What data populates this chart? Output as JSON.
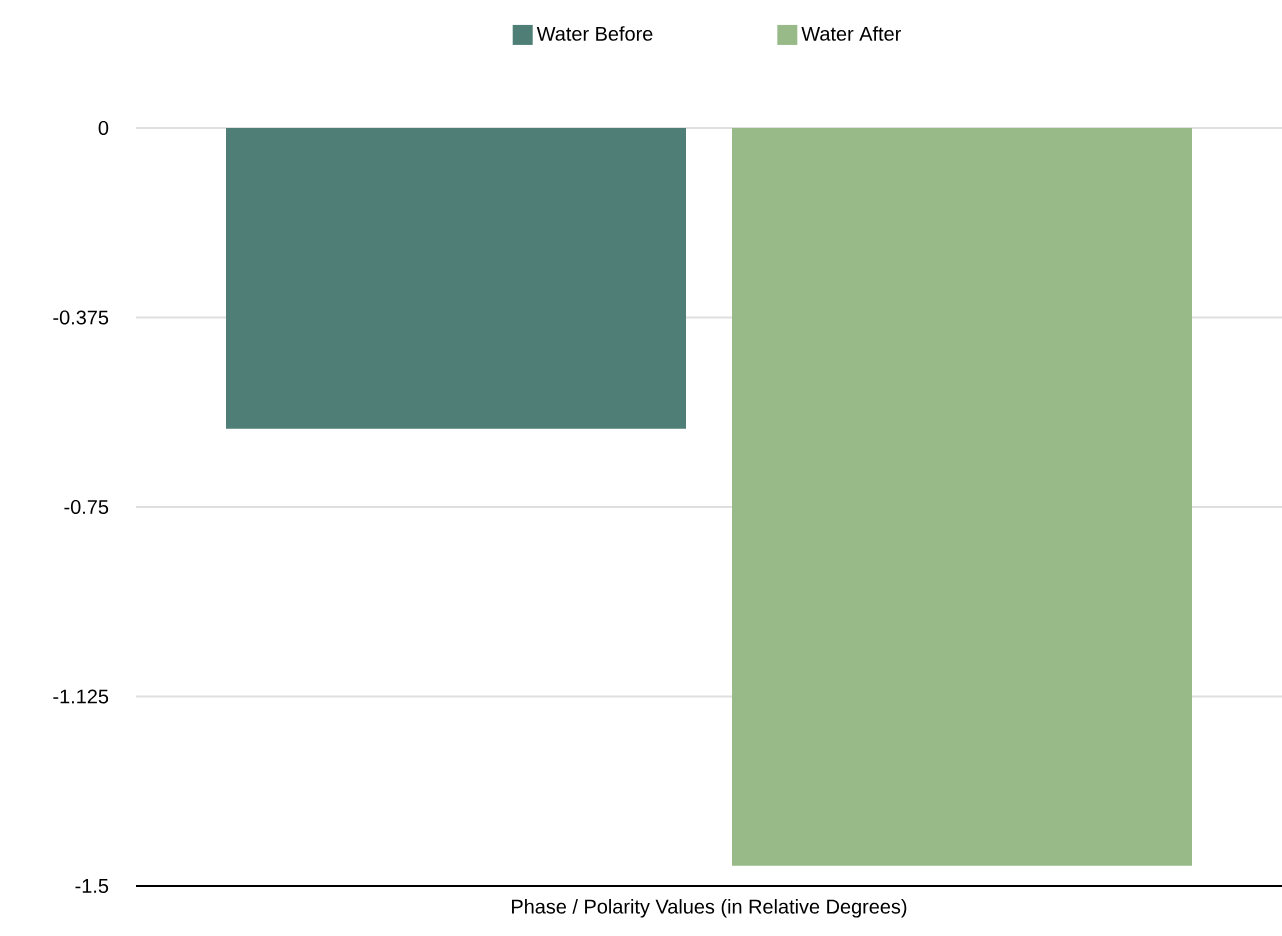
{
  "chart_data": {
    "type": "bar",
    "xlabel": "Phase / Polarity Values (in Relative Degrees)",
    "categories": [
      null
    ],
    "series": [
      {
        "name": "Water Before",
        "color": "#4e7e76",
        "values": [
          -0.595
        ]
      },
      {
        "name": "Water After",
        "color": "#97ba88",
        "values": [
          -1.46
        ]
      }
    ],
    "ylim": [
      -1.5,
      0
    ],
    "yticks": [
      0,
      -0.375,
      -0.75,
      -1.125,
      -1.5
    ],
    "grid": "y",
    "legend": "top"
  }
}
